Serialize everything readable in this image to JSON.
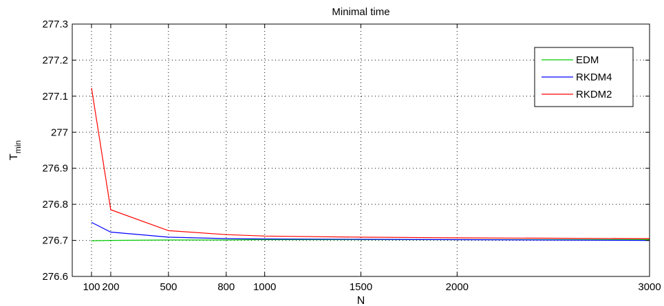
{
  "chart_data": {
    "type": "line",
    "title": "Minimal time",
    "xlabel": "N",
    "ylabel": "T",
    "ylabel_subscript": "min",
    "x": [
      100,
      200,
      500,
      800,
      1000,
      1500,
      2000,
      3000
    ],
    "x_ticks": [
      100,
      200,
      500,
      800,
      1000,
      1500,
      2000,
      3000
    ],
    "y_ticks": [
      276.6,
      276.7,
      276.8,
      276.9,
      277,
      277.1,
      277.2,
      277.3
    ],
    "xlim": [
      0,
      3000
    ],
    "ylim": [
      276.6,
      277.3
    ],
    "grid": true,
    "legend_position": "top-right",
    "series": [
      {
        "name": "EDM",
        "color": "#00cc00",
        "values": [
          276.699,
          276.7,
          276.701,
          276.701,
          276.702,
          276.702,
          276.702,
          276.702
        ]
      },
      {
        "name": "RKDM4",
        "color": "#0000ff",
        "values": [
          276.75,
          276.723,
          276.709,
          276.705,
          276.704,
          276.703,
          276.702,
          276.7
        ]
      },
      {
        "name": "RKDM2",
        "color": "#ff0000",
        "values": [
          277.123,
          276.785,
          276.727,
          276.716,
          276.712,
          276.709,
          276.707,
          276.705
        ]
      }
    ]
  }
}
